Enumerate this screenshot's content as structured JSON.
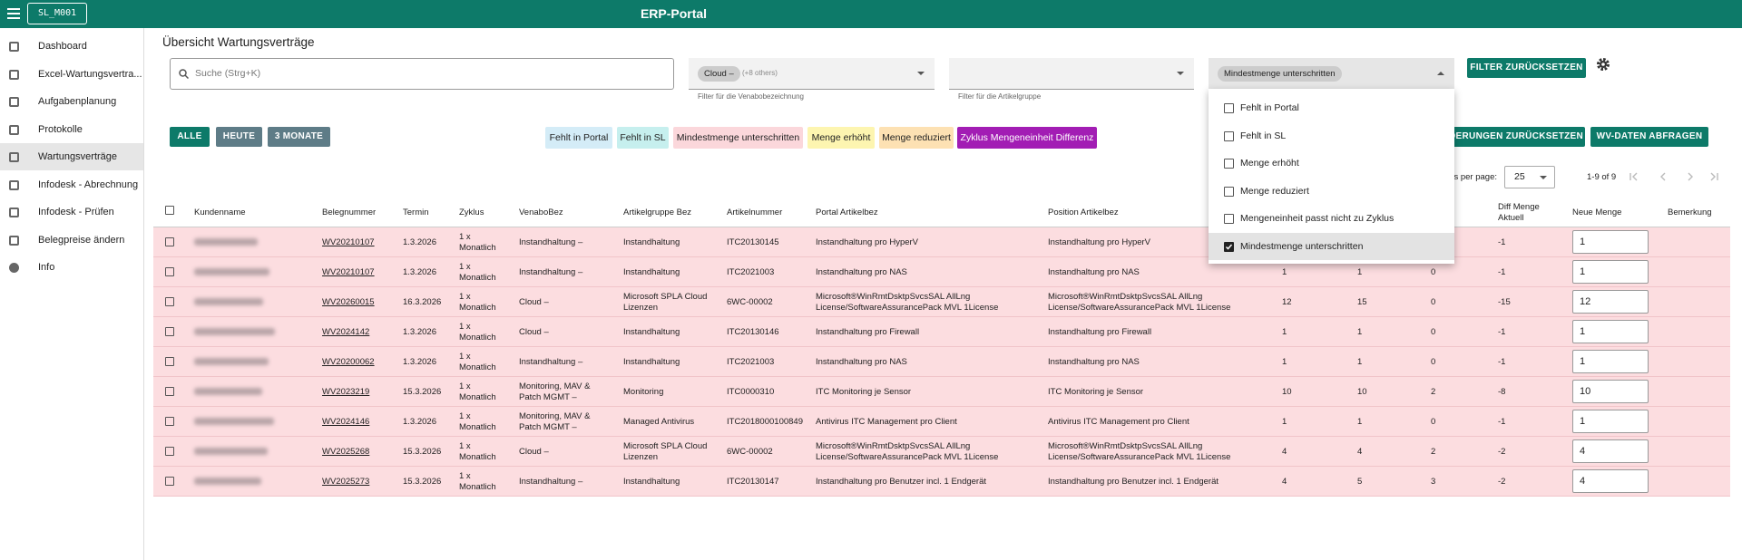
{
  "header": {
    "badge": "SL_M001",
    "title": "ERP-Portal"
  },
  "sidebar": [
    "Dashboard",
    "Excel-Wartungsvertra...",
    "Aufgabenplanung",
    "Protokolle",
    "Wartungsverträge",
    "Infodesk - Abrechnung",
    "Infodesk - Prüfen",
    "Belegpreise ändern",
    "Info"
  ],
  "page_title": "Übersicht Wartungsverträge",
  "filters": {
    "search_placeholder": "Suche (Strg+K)",
    "venabo_chip": "Cloud –",
    "venabo_more": "(+8 others)",
    "venabo_helper": "Filter für die Venabobezeichnung",
    "artikelgruppe_helper": "Filter für die Artikelgruppe",
    "status_chip": "Mindestmenge unterschritten",
    "reset": "FILTER ZURÜCKSETZEN"
  },
  "period_buttons": [
    "ALLE",
    "HEUTE",
    "3 MONATE"
  ],
  "legend_tags": [
    "Fehlt in Portal",
    "Fehlt in SL",
    "Mindestmenge unterschritten",
    "Menge erhöht",
    "Menge reduziert",
    "Zyklus Mengeneinheit Differenz"
  ],
  "actions": [
    "ÄNDERUNGEN ZURÜCKSETZEN",
    "WV-DATEN ABFRAGEN"
  ],
  "pagination": {
    "label": "Items per page:",
    "size": "25",
    "range": "1-9 of 9"
  },
  "dropdown": {
    "options": [
      {
        "label": "Fehlt in Portal",
        "checked": false
      },
      {
        "label": "Fehlt in SL",
        "checked": false
      },
      {
        "label": "Menge erhöht",
        "checked": false
      },
      {
        "label": "Menge reduziert",
        "checked": false
      },
      {
        "label": "Mengeneinheit passt nicht zu Zyklus",
        "checked": false
      },
      {
        "label": "Mindestmenge unterschritten",
        "checked": true
      }
    ]
  },
  "table": {
    "headers": [
      "Kundenname",
      "Belegnummer",
      "Termin",
      "Zyklus",
      "VenaboBez",
      "Artikelgruppe Bez",
      "Artikelnummer",
      "Portal Artikelbez",
      "Position Artikelbez",
      null,
      null,
      null,
      "Diff Menge Aktuell",
      "Neue Menge",
      "Bemerkung"
    ],
    "rows": [
      [
        "WV20210107",
        "1.3.2026",
        "1 x Monatlich",
        "Instandhaltung –",
        "Instandhaltung",
        "ITC20130145",
        "Instandhaltung pro HyperV",
        "Instandhaltung pro HyperV",
        null,
        null,
        null,
        "-1",
        "1"
      ],
      [
        "WV20210107",
        "1.3.2026",
        "1 x Monatlich",
        "Instandhaltung –",
        "Instandhaltung",
        "ITC2021003",
        "Instandhaltung pro NAS",
        "Instandhaltung pro NAS",
        "1",
        "1",
        "0",
        "-1",
        "1"
      ],
      [
        "WV20260015",
        "16.3.2026",
        "1 x Monatlich",
        "Cloud –",
        "Microsoft SPLA Cloud Lizenzen",
        "6WC-00002",
        "Microsoft®WinRmtDsktpSvcsSAL AllLng License/SoftwareAssurancePack MVL 1License",
        "Microsoft®WinRmtDsktpSvcsSAL AllLng License/SoftwareAssurancePack MVL 1License",
        "12",
        "15",
        "0",
        "-15",
        "12"
      ],
      [
        "WV2024142",
        "1.3.2026",
        "1 x Monatlich",
        "Cloud –",
        "Instandhaltung",
        "ITC20130146",
        "Instandhaltung pro Firewall",
        "Instandhaltung pro Firewall",
        "1",
        "1",
        "0",
        "-1",
        "1"
      ],
      [
        "WV20200062",
        "1.3.2026",
        "1 x Monatlich",
        "Instandhaltung –",
        "Instandhaltung",
        "ITC2021003",
        "Instandhaltung pro NAS",
        "Instandhaltung pro NAS",
        "1",
        "1",
        "0",
        "-1",
        "1"
      ],
      [
        "WV2023219",
        "15.3.2026",
        "1 x Monatlich",
        "Monitoring, MAV & Patch MGMT –",
        "Monitoring",
        "ITC0000310",
        "ITC Monitoring je Sensor",
        "ITC Monitoring je Sensor",
        "10",
        "10",
        "2",
        "-8",
        "10"
      ],
      [
        "WV2024146",
        "1.3.2026",
        "1 x Monatlich",
        "Monitoring, MAV & Patch MGMT –",
        "Managed Antivirus",
        "ITC2018000100849",
        "Antivirus ITC Management pro Client",
        "Antivirus ITC Management pro Client",
        "1",
        "1",
        "0",
        "-1",
        "1"
      ],
      [
        "WV2025268",
        "15.3.2026",
        "1 x Monatlich",
        "Cloud –",
        "Microsoft SPLA Cloud Lizenzen",
        "6WC-00002",
        "Microsoft®WinRmtDsktpSvcsSAL AllLng License/SoftwareAssurancePack MVL 1License",
        "Microsoft®WinRmtDsktpSvcsSAL AllLng License/SoftwareAssurancePack MVL 1License",
        "4",
        "4",
        "2",
        "-2",
        "4"
      ],
      [
        "WV2025273",
        "15.3.2026",
        "1 x Monatlich",
        "Instandhaltung –",
        "Instandhaltung",
        "ITC20130147",
        "Instandhaltung pro Benutzer incl. 1 Endgerät",
        "Instandhaltung pro Benutzer incl. 1 Endgerät",
        "4",
        "5",
        "3",
        "-2",
        "4"
      ]
    ]
  }
}
